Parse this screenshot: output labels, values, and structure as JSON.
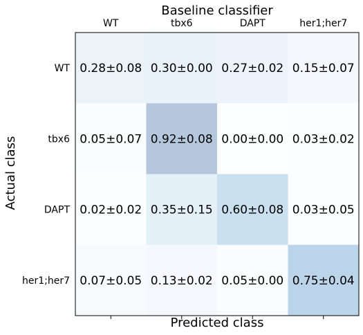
{
  "chart_data": {
    "type": "heatmap",
    "title": "Baseline classifier",
    "xlabel": "Predicted class",
    "ylabel": "Actual class",
    "x_categories": [
      "WT",
      "tbx6",
      "DAPT",
      "her1;her7"
    ],
    "y_categories": [
      "WT",
      "tbx6",
      "DAPT",
      "her1;her7"
    ],
    "values": [
      [
        0.28,
        0.3,
        0.27,
        0.15
      ],
      [
        0.05,
        0.92,
        0.0,
        0.03
      ],
      [
        0.02,
        0.35,
        0.6,
        0.03
      ],
      [
        0.07,
        0.13,
        0.05,
        0.75
      ]
    ],
    "cell_labels": [
      [
        "0.28±0.08",
        "0.30±0.00",
        "0.27±0.02",
        "0.15±0.07"
      ],
      [
        "0.05±0.07",
        "0.92±0.08",
        "0.00±0.00",
        "0.03±0.02"
      ],
      [
        "0.02±0.02",
        "0.35±0.15",
        "0.60±0.08",
        "0.03±0.05"
      ],
      [
        "0.07±0.05",
        "0.13±0.02",
        "0.05±0.00",
        "0.75±0.04"
      ]
    ],
    "color_scale": {
      "low": "#f7fbff",
      "high": "#08306b",
      "alpha": 0.3
    },
    "x_tick_labels_position": "top",
    "grid": false
  }
}
